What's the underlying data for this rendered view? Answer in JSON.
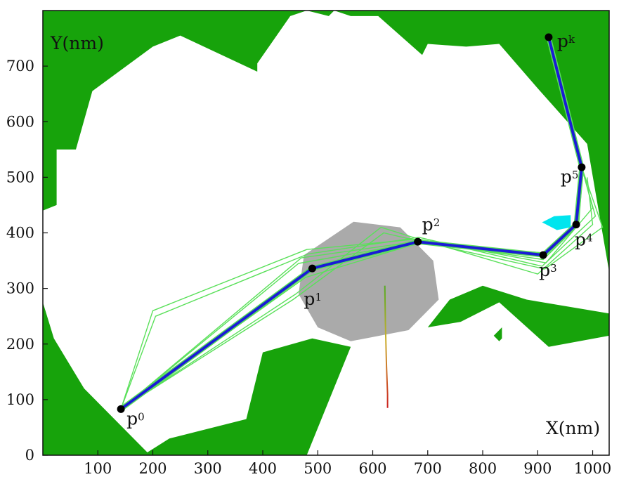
{
  "chart_data": {
    "type": "line",
    "xlabel": "X(nm)",
    "ylabel": "Y(nm)",
    "xlim": [
      0,
      1030
    ],
    "ylim": [
      0,
      800
    ],
    "x_ticks": [
      "100",
      "200",
      "300",
      "400",
      "500",
      "600",
      "700",
      "800",
      "900",
      "1000"
    ],
    "y_ticks": [
      "0",
      "100",
      "200",
      "300",
      "400",
      "500",
      "600",
      "700"
    ],
    "colors": {
      "obstacle": "#17a30b",
      "hub": "#aaaaaa",
      "path": "#1b1bd6",
      "path_outline": "#5ae05a",
      "candidate": "#5ae05a",
      "marker": "#00e5ee",
      "trace_top": "#55aa22",
      "trace_bottom": "#cc2222",
      "point": "#000000"
    },
    "points": [
      {
        "base": "p",
        "sub": "0",
        "x": 142,
        "y": 83
      },
      {
        "base": "p",
        "sub": "1",
        "x": 490,
        "y": 336
      },
      {
        "base": "p",
        "sub": "2",
        "x": 682,
        "y": 384
      },
      {
        "base": "p",
        "sub": "3",
        "x": 910,
        "y": 360
      },
      {
        "base": "p",
        "sub": "4",
        "x": 970,
        "y": 415
      },
      {
        "base": "p",
        "sub": "5",
        "x": 980,
        "y": 518
      },
      {
        "base": "p",
        "sub": "k",
        "x": 920,
        "y": 752
      }
    ],
    "candidate_paths": [
      [
        [
          142,
          83
        ],
        [
          200,
          260
        ],
        [
          480,
          370
        ],
        [
          682,
          389
        ],
        [
          915,
          346
        ],
        [
          1000,
          445
        ],
        [
          980,
          518
        ]
      ],
      [
        [
          142,
          83
        ],
        [
          205,
          250
        ],
        [
          482,
          362
        ],
        [
          684,
          392
        ],
        [
          908,
          340
        ],
        [
          1005,
          430
        ],
        [
          980,
          518
        ]
      ],
      [
        [
          142,
          83
        ],
        [
          470,
          355
        ],
        [
          683,
          385
        ],
        [
          910,
          352
        ],
        [
          965,
          405
        ],
        [
          980,
          518
        ]
      ],
      [
        [
          142,
          83
        ],
        [
          465,
          345
        ],
        [
          682,
          383
        ],
        [
          909,
          358
        ],
        [
          972,
          412
        ],
        [
          980,
          518
        ]
      ],
      [
        [
          142,
          83
        ],
        [
          460,
          290
        ],
        [
          615,
          410
        ],
        [
          670,
          393
        ],
        [
          900,
          326
        ],
        [
          1000,
          415
        ],
        [
          990,
          500
        ]
      ],
      [
        [
          142,
          83
        ],
        [
          455,
          280
        ],
        [
          620,
          400
        ],
        [
          680,
          386
        ],
        [
          913,
          335
        ],
        [
          1018,
          410
        ],
        [
          980,
          518
        ]
      ],
      [
        [
          142,
          83
        ],
        [
          478,
          320
        ],
        [
          681,
          381
        ],
        [
          912,
          364
        ],
        [
          975,
          420
        ],
        [
          982,
          515
        ]
      ]
    ],
    "obstacles": [
      [
        [
          0,
          800
        ],
        [
          1030,
          800
        ],
        [
          1030,
          330
        ],
        [
          990,
          560
        ],
        [
          900,
          660
        ],
        [
          830,
          740
        ],
        [
          770,
          735
        ],
        [
          700,
          740
        ],
        [
          690,
          720
        ],
        [
          610,
          790
        ],
        [
          560,
          790
        ],
        [
          530,
          800
        ]
      ],
      [
        [
          0,
          800
        ],
        [
          530,
          800
        ],
        [
          520,
          790
        ],
        [
          480,
          800
        ],
        [
          450,
          790
        ],
        [
          390,
          705
        ],
        [
          390,
          690
        ],
        [
          250,
          755
        ],
        [
          200,
          735
        ],
        [
          90,
          655
        ],
        [
          60,
          550
        ],
        [
          25,
          550
        ],
        [
          25,
          450
        ],
        [
          0,
          440
        ]
      ],
      [
        [
          0,
          275
        ],
        [
          20,
          210
        ],
        [
          75,
          120
        ],
        [
          190,
          5
        ],
        [
          230,
          30
        ],
        [
          370,
          65
        ],
        [
          400,
          185
        ],
        [
          490,
          210
        ],
        [
          560,
          195
        ],
        [
          480,
          0
        ],
        [
          0,
          0
        ]
      ],
      [
        [
          700,
          230
        ],
        [
          740,
          280
        ],
        [
          800,
          305
        ],
        [
          880,
          280
        ],
        [
          1030,
          255
        ],
        [
          1030,
          215
        ],
        [
          920,
          195
        ],
        [
          830,
          275
        ],
        [
          760,
          240
        ]
      ],
      [
        [
          820,
          215
        ],
        [
          835,
          230
        ],
        [
          835,
          210
        ],
        [
          830,
          205
        ]
      ]
    ],
    "hub": [
      [
        565,
        420
      ],
      [
        650,
        410
      ],
      [
        710,
        350
      ],
      [
        720,
        280
      ],
      [
        665,
        225
      ],
      [
        560,
        205
      ],
      [
        500,
        230
      ],
      [
        465,
        290
      ],
      [
        475,
        360
      ]
    ],
    "marker": [
      [
        930,
        430
      ],
      [
        960,
        432
      ],
      [
        960,
        410
      ],
      [
        935,
        405
      ],
      [
        908,
        419
      ]
    ],
    "trace": [
      [
        622,
        305
      ],
      [
        623,
        240
      ],
      [
        625,
        160
      ],
      [
        627,
        110
      ],
      [
        627,
        85
      ]
    ]
  }
}
